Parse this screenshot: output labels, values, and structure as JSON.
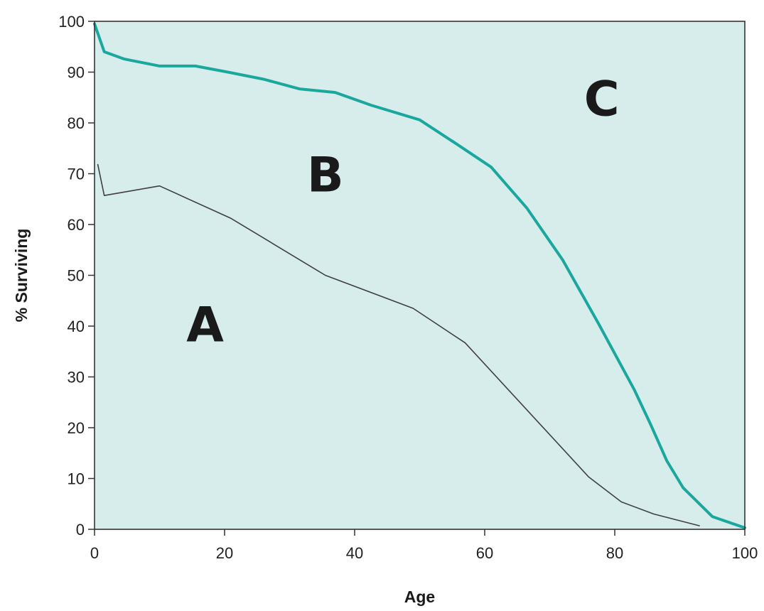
{
  "chart_data": {
    "type": "line",
    "xlabel": "Age",
    "ylabel": "% Surviving",
    "xlim": [
      0,
      100
    ],
    "ylim": [
      0,
      100
    ],
    "x_ticks": [
      0,
      20,
      40,
      60,
      80,
      100
    ],
    "y_ticks": [
      0,
      10,
      20,
      30,
      40,
      50,
      60,
      70,
      80,
      90,
      100
    ],
    "grid": false,
    "background_color": "#d6edeb",
    "series": [
      {
        "color": "#1aa79d",
        "points": [
          [
            0,
            99.5
          ],
          [
            1.5,
            94
          ],
          [
            4.5,
            92.6
          ],
          [
            10,
            91.2
          ],
          [
            15.5,
            91.2
          ],
          [
            20.5,
            90
          ],
          [
            26,
            88.6
          ],
          [
            31.5,
            86.7
          ],
          [
            37,
            86
          ],
          [
            42.5,
            83.5
          ],
          [
            50,
            80.6
          ],
          [
            55.5,
            76
          ],
          [
            61,
            71.3
          ],
          [
            66.5,
            63.2
          ],
          [
            72,
            53
          ],
          [
            77.5,
            40.5
          ],
          [
            83,
            27.5
          ],
          [
            85.5,
            20.7
          ],
          [
            88,
            13.5
          ],
          [
            90.5,
            8.2
          ],
          [
            95,
            2.5
          ],
          [
            100,
            0.3
          ]
        ]
      },
      {
        "color": "#404040",
        "points": [
          [
            0.5,
            71.8
          ],
          [
            1.5,
            65.7
          ],
          [
            10,
            67.6
          ],
          [
            21,
            61.2
          ],
          [
            35.5,
            50
          ],
          [
            49,
            43.5
          ],
          [
            57,
            36.7
          ],
          [
            76,
            10.3
          ],
          [
            81,
            5.4
          ],
          [
            86,
            3
          ],
          [
            93,
            0.7
          ]
        ]
      }
    ],
    "annotations": [
      {
        "text": "A",
        "x": 17,
        "y": 37
      },
      {
        "text": "B",
        "x": 35.5,
        "y": 66.5
      },
      {
        "text": "C",
        "x": 78,
        "y": 81.5
      }
    ]
  }
}
